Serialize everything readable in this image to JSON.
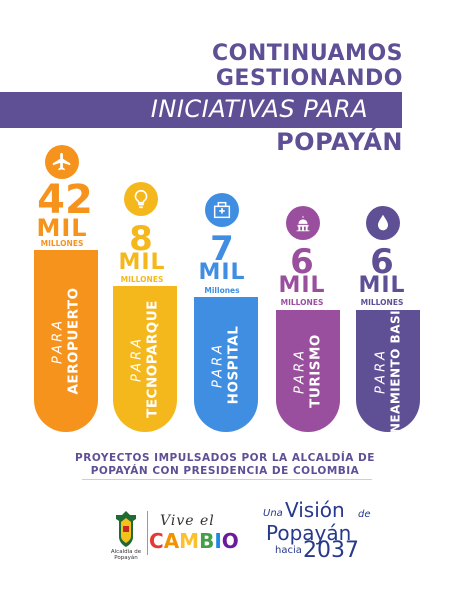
{
  "title": {
    "line1": "CONTINUAMOS",
    "line2": "GESTIONANDO",
    "line3": "INICIATIVAS PARA",
    "line4": "POPAYÁN"
  },
  "columns": [
    {
      "icon": "airplane-icon",
      "number": "42",
      "mil": "MIL",
      "millones": "MILLONES",
      "para": "PARA",
      "label": "AEROPUERTO",
      "color": "#f6931d"
    },
    {
      "icon": "lightbulb-icon",
      "number": "8",
      "mil": "MIL",
      "millones": "MILLONES",
      "para": "PARA",
      "label": "TECNOPARQUE",
      "color": "#f5b81c"
    },
    {
      "icon": "hospital-icon",
      "number": "7",
      "mil": "MIL",
      "millones": "Millones",
      "para": "PARA",
      "label": "HOSPITAL",
      "color": "#3f8ee2"
    },
    {
      "icon": "dome-icon",
      "number": "6",
      "mil": "MIL",
      "millones": "MILLONES",
      "para": "PARA",
      "label": "TURISMO",
      "color": "#9a4f9e"
    },
    {
      "icon": "water-drop-icon",
      "number": "6",
      "mil": "MIL",
      "millones": "MILLONES",
      "para": "PARA",
      "label": "SANEAMIENTO BASICO",
      "color": "#5f4f95"
    }
  ],
  "footer": {
    "line1": "PROYECTOS IMPULSADOS POR LA ALCALDÍA DE",
    "line2": "POPAYÁN CON PRESIDENCIA DE COLOMBIA"
  },
  "logos": {
    "alcaldia": "Alcaldía de Popayán",
    "vive": "Vive el",
    "cambio": "CAMBIO",
    "una": "Una",
    "vision": "Visión",
    "de": "de",
    "popayan": "Popayán",
    "hacia": "hacia",
    "year": "2037"
  },
  "colors": {
    "title": "#5f4f95",
    "blue_logo": "#27398c"
  }
}
